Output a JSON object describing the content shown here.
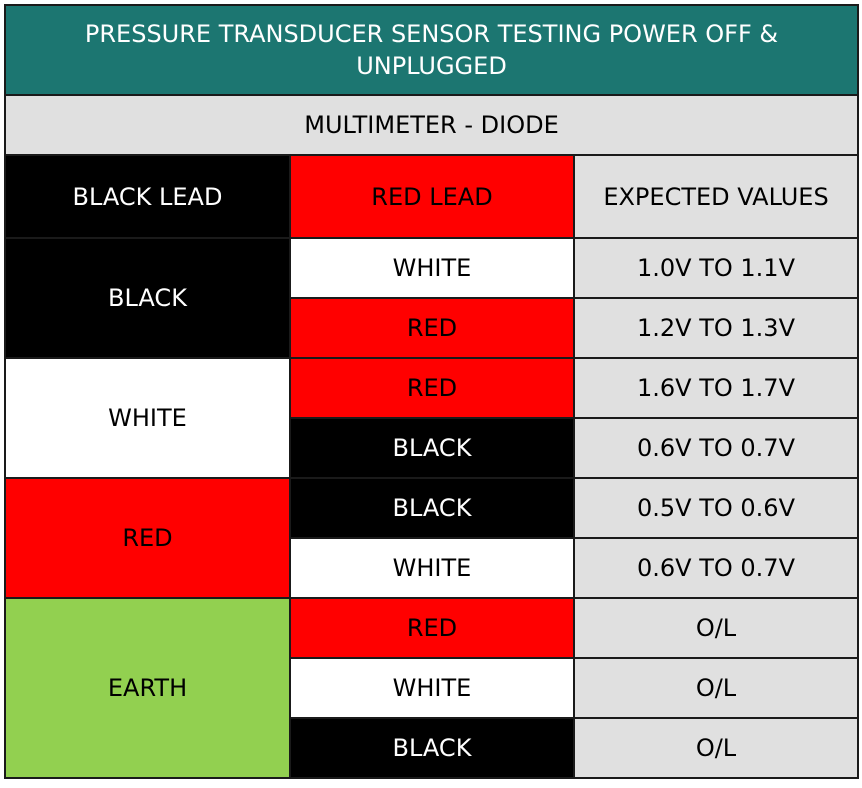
{
  "title": "PRESSURE TRANSDUCER SENSOR TESTING POWER OFF & UNPLUGGED",
  "subtitle": "MULTIMETER - DIODE",
  "headers": {
    "black_lead": "BLACK LEAD",
    "red_lead": "RED LEAD",
    "expected": "EXPECTED VALUES"
  },
  "groups": [
    {
      "black_lead": "BLACK",
      "color": "#000000",
      "rows": [
        {
          "red_lead": "WHITE",
          "expected": "1.0V TO 1.1V"
        },
        {
          "red_lead": "RED",
          "expected": "1.2V TO 1.3V"
        }
      ]
    },
    {
      "black_lead": "WHITE",
      "color": "#ffffff",
      "rows": [
        {
          "red_lead": "RED",
          "expected": "1.6V TO 1.7V"
        },
        {
          "red_lead": "BLACK",
          "expected": "0.6V TO 0.7V"
        }
      ]
    },
    {
      "black_lead": "RED",
      "color": "#ff0000",
      "rows": [
        {
          "red_lead": "BLACK",
          "expected": "0.5V TO 0.6V"
        },
        {
          "red_lead": "WHITE",
          "expected": "0.6V TO 0.7V"
        }
      ]
    },
    {
      "black_lead": "EARTH",
      "color": "#92d050",
      "rows": [
        {
          "red_lead": "RED",
          "expected": "O/L"
        },
        {
          "red_lead": "WHITE",
          "expected": "O/L"
        },
        {
          "red_lead": "BLACK",
          "expected": "O/L"
        }
      ]
    }
  ],
  "colors": {
    "title_bg": "#1c7671",
    "subtitle_bg": "#e0e0e0",
    "black": "#000000",
    "red": "#ff0000",
    "white": "#ffffff",
    "green": "#92d050",
    "grey": "#e0e0e0"
  }
}
